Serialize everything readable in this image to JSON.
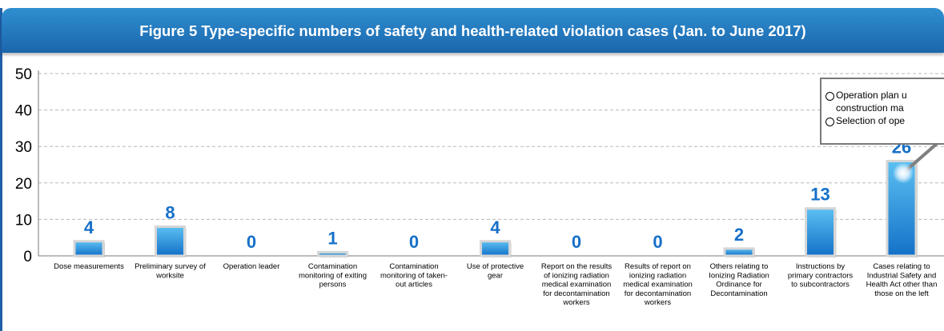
{
  "title": "Figure 5 Type-specific numbers of safety and health-related violation cases (Jan. to June 2017)",
  "callout": {
    "lines": [
      {
        "bullet": true,
        "text": "Operation plan u"
      },
      {
        "bullet": false,
        "text": "construction ma"
      },
      {
        "bullet": true,
        "text": "Selection of ope"
      }
    ]
  },
  "colors": {
    "header": "#1b66ad",
    "bar_top": "#5cc0f2",
    "bar_bottom": "#1371c8",
    "value_label": "#1670c8",
    "grid": "#b8b8b8"
  },
  "chart_data": {
    "type": "bar",
    "title": "Figure 5 Type-specific numbers of safety and health-related violation cases (Jan. to June 2017)",
    "xlabel": "",
    "ylabel": "",
    "ylim": [
      0,
      50
    ],
    "yticks": [
      0,
      10,
      20,
      30,
      40,
      50
    ],
    "grid": true,
    "categories": [
      "Dose measurements",
      "Preliminary survey of worksite",
      "Operation leader",
      "Contamination monitoring of exiting persons",
      "Contamination monitoring of taken-out articles",
      "Use of protective gear",
      "Report on the results of ionizing radiation medical examination for decontamination workers",
      "Results of report on ionizing radiation medical examination for decontamination workers",
      "Others relating to Ionizing Radiation Ordinance for Decontamination",
      "Instructions by primary contractors to subcontractors",
      "Cases relating to Industrial Safety and Health Act other than those on the left"
    ],
    "category_lines": [
      [
        "Dose measurements"
      ],
      [
        "Preliminary survey of",
        "worksite"
      ],
      [
        "Operation leader"
      ],
      [
        "Contamination",
        "monitoring of exiting",
        "persons"
      ],
      [
        "Contamination",
        "monitoring of taken-",
        "out articles"
      ],
      [
        "Use of protective",
        "gear"
      ],
      [
        "Report on the results",
        "of ionizing radiation",
        "medical examination",
        "for decontamination",
        "workers"
      ],
      [
        "Results of report on",
        "ionizing radiation",
        "medical examination",
        "for decontamination",
        "workers"
      ],
      [
        "Others relating to",
        "Ionizing Radiation",
        "Ordinance for",
        "Decontamination"
      ],
      [
        "Instructions by",
        "primary contractors",
        "to subcontractors"
      ],
      [
        "Cases relating to",
        "Industrial Safety and",
        "Health Act other than",
        "those on the left"
      ]
    ],
    "values": [
      4,
      8,
      0,
      1,
      0,
      4,
      0,
      0,
      2,
      13,
      26
    ],
    "value_labels": [
      "4",
      "8",
      "0",
      "1",
      "0",
      "4",
      "0",
      "0",
      "2",
      "13",
      "26"
    ]
  }
}
